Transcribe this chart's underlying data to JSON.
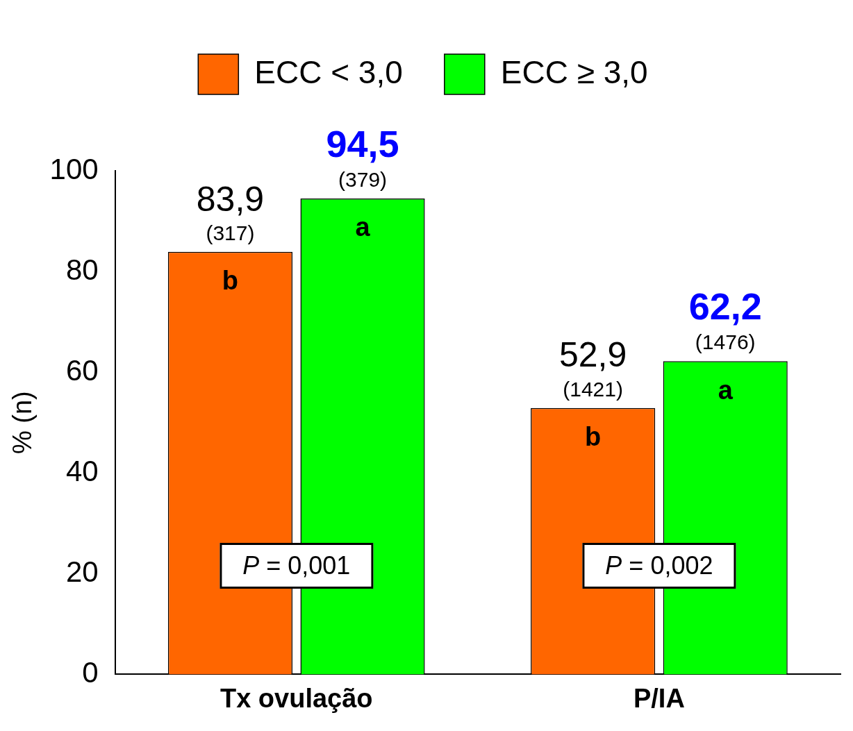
{
  "chart_data": {
    "type": "bar",
    "ylabel": "% (n)",
    "categories": [
      "Tx ovulação",
      "P/IA"
    ],
    "series": [
      {
        "name": "ECC < 3,0",
        "color": "#ff6600",
        "values": [
          83.9,
          52.9
        ],
        "value_labels": [
          "83,9 (317)",
          "52,9 (1421)"
        ]
      },
      {
        "name": "ECC ≥ 3,0",
        "color": "#00ff00",
        "values": [
          94.5,
          62.2
        ],
        "value_labels": [
          "94,5 (379)",
          "62,2 (1476)"
        ]
      }
    ],
    "ylim": [
      0,
      100
    ],
    "yticks": [
      0,
      20,
      40,
      60,
      80,
      100
    ],
    "grid": false,
    "legend": "top",
    "annotations": [
      "b",
      "a",
      "b",
      "a",
      "P = 0,001",
      "P = 0,002"
    ]
  }
}
